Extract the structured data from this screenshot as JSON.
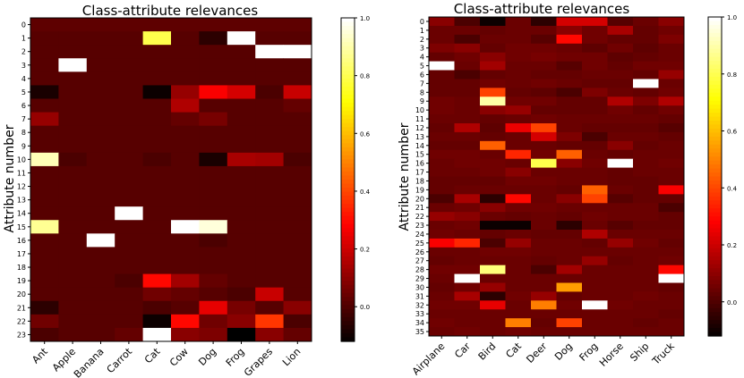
{
  "chart_data": [
    {
      "type": "heatmap",
      "title": "Class-attribute relevances",
      "xlabel": "",
      "ylabel": "Attribute number",
      "categories": [
        "Ant",
        "Apple",
        "Banana",
        "Carrot",
        "Cat",
        "Cow",
        "Dog",
        "Frog",
        "Grapes",
        "Lion"
      ],
      "rows": [
        "0",
        "1",
        "2",
        "3",
        "4",
        "5",
        "6",
        "7",
        "8",
        "9",
        "10",
        "11",
        "12",
        "13",
        "14",
        "15",
        "16",
        "17",
        "18",
        "19",
        "20",
        "21",
        "22",
        "23"
      ],
      "values": [
        [
          0.03,
          0.03,
          0.03,
          0.03,
          0.03,
          0.03,
          0.03,
          0.03,
          0.03,
          0.03
        ],
        [
          0.02,
          0.02,
          0.02,
          0.02,
          0.8,
          0.02,
          -0.05,
          1.0,
          0.02,
          0.02
        ],
        [
          0.02,
          0.02,
          0.02,
          0.02,
          0.02,
          0.02,
          0.02,
          0.02,
          1.0,
          1.0
        ],
        [
          0.02,
          1.0,
          0.02,
          0.02,
          0.02,
          0.02,
          0.02,
          0.02,
          0.02,
          0.02
        ],
        [
          0.02,
          0.02,
          0.02,
          0.02,
          0.02,
          0.02,
          0.02,
          0.02,
          0.02,
          0.02
        ],
        [
          -0.08,
          0.02,
          0.02,
          0.02,
          -0.1,
          0.12,
          0.28,
          0.22,
          0.0,
          0.2
        ],
        [
          0.02,
          0.02,
          0.02,
          0.02,
          0.02,
          0.16,
          0.02,
          0.02,
          0.02,
          0.04
        ],
        [
          0.12,
          0.02,
          0.02,
          0.02,
          0.02,
          0.04,
          0.07,
          0.02,
          0.02,
          0.02
        ],
        [
          0.02,
          0.02,
          0.02,
          0.02,
          0.02,
          0.02,
          0.02,
          0.02,
          0.02,
          0.02
        ],
        [
          0.02,
          0.02,
          0.02,
          0.02,
          0.02,
          0.02,
          0.02,
          0.02,
          0.02,
          0.02
        ],
        [
          0.92,
          0.0,
          0.02,
          0.02,
          0.0,
          0.02,
          -0.08,
          0.15,
          0.14,
          0.0
        ],
        [
          0.02,
          0.02,
          0.02,
          0.02,
          0.02,
          0.02,
          0.02,
          0.02,
          0.02,
          0.02
        ],
        [
          0.02,
          0.02,
          0.02,
          0.02,
          0.02,
          0.02,
          0.02,
          0.02,
          0.02,
          0.02
        ],
        [
          0.02,
          0.02,
          0.02,
          0.02,
          0.02,
          0.02,
          0.02,
          0.02,
          0.02,
          0.02
        ],
        [
          0.02,
          0.02,
          0.02,
          1.0,
          0.02,
          0.02,
          0.02,
          0.02,
          0.02,
          0.02
        ],
        [
          0.88,
          0.02,
          0.02,
          0.02,
          0.02,
          1.0,
          0.96,
          0.02,
          0.02,
          0.02
        ],
        [
          0.02,
          0.02,
          1.0,
          0.02,
          0.02,
          0.02,
          0.0,
          0.02,
          0.02,
          0.02
        ],
        [
          0.02,
          0.02,
          0.02,
          0.02,
          0.02,
          0.02,
          0.02,
          0.02,
          0.02,
          0.02
        ],
        [
          0.02,
          0.02,
          0.02,
          0.02,
          0.02,
          0.02,
          0.02,
          0.02,
          0.02,
          0.02
        ],
        [
          0.02,
          0.02,
          0.02,
          0.0,
          0.3,
          0.14,
          0.04,
          0.02,
          0.02,
          0.02
        ],
        [
          0.02,
          0.02,
          0.02,
          0.02,
          0.06,
          0.04,
          0.02,
          0.0,
          0.2,
          0.02
        ],
        [
          -0.05,
          0.02,
          0.02,
          0.02,
          0.0,
          0.02,
          0.25,
          0.07,
          0.02,
          0.1
        ],
        [
          0.06,
          0.02,
          0.02,
          0.02,
          -0.1,
          0.3,
          0.06,
          0.1,
          0.38,
          0.0
        ],
        [
          0.0,
          0.02,
          0.02,
          0.04,
          1.0,
          0.1,
          0.08,
          -0.15,
          0.1,
          0.04
        ]
      ],
      "colorbar": {
        "min": -0.12,
        "max": 1.0,
        "ticks": [
          "0.0",
          "0.2",
          "0.4",
          "0.6",
          "0.8",
          "1.0"
        ]
      },
      "colormap": "hot"
    },
    {
      "type": "heatmap",
      "title": "Class-attribute relevances",
      "xlabel": "",
      "ylabel": "Attribute number",
      "categories": [
        "Airplane",
        "Car",
        "Bird",
        "Cat",
        "Deer",
        "Dog",
        "Frog",
        "Horse",
        "Ship",
        "Truck"
      ],
      "rows": [
        "0",
        "1",
        "2",
        "3",
        "4",
        "5",
        "6",
        "7",
        "8",
        "9",
        "10",
        "11",
        "12",
        "13",
        "14",
        "15",
        "16",
        "17",
        "18",
        "19",
        "20",
        "21",
        "22",
        "23",
        "24",
        "25",
        "26",
        "27",
        "28",
        "29",
        "30",
        "31",
        "32",
        "33",
        "34",
        "35"
      ],
      "values": [
        [
          0.1,
          0.0,
          -0.1,
          0.05,
          -0.05,
          0.22,
          0.22,
          0.02,
          0.05,
          0.1
        ],
        [
          0.05,
          0.05,
          0.04,
          0.05,
          0.05,
          0.1,
          0.06,
          0.15,
          0.04,
          0.06
        ],
        [
          0.05,
          0.0,
          0.05,
          0.05,
          0.02,
          0.3,
          0.06,
          0.04,
          0.04,
          0.08
        ],
        [
          0.08,
          0.1,
          0.04,
          0.06,
          0.06,
          0.05,
          0.03,
          0.06,
          0.03,
          0.05
        ],
        [
          0.04,
          0.06,
          0.1,
          0.06,
          0.07,
          0.06,
          0.06,
          0.03,
          0.04,
          0.05
        ],
        [
          1.0,
          0.05,
          0.14,
          0.05,
          0.05,
          0.02,
          0.06,
          0.04,
          0.06,
          0.06
        ],
        [
          0.04,
          0.0,
          0.04,
          0.05,
          0.04,
          0.04,
          0.05,
          0.05,
          0.04,
          0.12
        ],
        [
          0.04,
          0.04,
          0.06,
          0.05,
          0.06,
          0.05,
          0.04,
          0.04,
          1.0,
          0.05
        ],
        [
          0.04,
          0.04,
          0.4,
          0.04,
          0.03,
          0.0,
          0.08,
          0.05,
          0.04,
          0.06
        ],
        [
          0.06,
          0.05,
          0.9,
          0.06,
          0.06,
          0.04,
          0.04,
          0.16,
          0.08,
          0.16
        ],
        [
          0.06,
          0.05,
          0.1,
          0.12,
          0.04,
          0.04,
          0.04,
          0.06,
          0.04,
          0.06
        ],
        [
          0.05,
          0.05,
          0.04,
          0.05,
          0.06,
          0.05,
          0.05,
          0.05,
          0.05,
          0.04
        ],
        [
          0.04,
          0.16,
          0.03,
          0.26,
          0.4,
          0.05,
          0.04,
          0.04,
          0.04,
          0.02
        ],
        [
          0.05,
          0.05,
          0.04,
          0.05,
          0.22,
          0.08,
          0.0,
          0.05,
          0.05,
          0.04
        ],
        [
          0.04,
          0.04,
          0.45,
          0.05,
          0.05,
          0.04,
          0.04,
          0.1,
          0.04,
          0.05
        ],
        [
          0.06,
          0.06,
          0.05,
          0.35,
          0.06,
          0.45,
          0.05,
          0.04,
          0.05,
          0.05
        ],
        [
          0.05,
          0.06,
          0.06,
          0.05,
          0.8,
          0.1,
          0.06,
          1.0,
          0.05,
          0.06
        ],
        [
          0.05,
          0.05,
          0.06,
          0.1,
          0.05,
          0.05,
          0.05,
          0.04,
          0.05,
          0.05
        ],
        [
          0.04,
          0.04,
          0.04,
          0.06,
          0.06,
          0.05,
          0.05,
          0.04,
          0.04,
          0.05
        ],
        [
          0.04,
          0.05,
          0.05,
          0.05,
          0.05,
          0.04,
          0.45,
          0.05,
          0.04,
          0.28
        ],
        [
          0.0,
          0.15,
          -0.05,
          0.3,
          0.05,
          0.1,
          0.4,
          0.02,
          0.04,
          0.04
        ],
        [
          0.05,
          0.06,
          0.1,
          0.06,
          0.06,
          0.05,
          0.05,
          0.05,
          0.05,
          0.0
        ],
        [
          0.12,
          0.1,
          0.05,
          0.04,
          0.05,
          0.04,
          0.06,
          0.05,
          0.05,
          0.04
        ],
        [
          0.05,
          0.06,
          -0.1,
          -0.1,
          0.05,
          -0.05,
          0.05,
          0.02,
          0.04,
          0.04
        ],
        [
          0.06,
          0.05,
          0.04,
          0.05,
          0.04,
          0.04,
          0.16,
          0.05,
          0.05,
          0.05
        ],
        [
          0.28,
          0.35,
          0.0,
          0.12,
          0.05,
          0.05,
          0.04,
          0.12,
          0.06,
          0.04
        ],
        [
          0.05,
          0.05,
          0.06,
          0.06,
          0.05,
          0.05,
          0.05,
          0.05,
          0.05,
          0.05
        ],
        [
          0.04,
          0.05,
          0.05,
          0.05,
          0.04,
          0.05,
          0.12,
          0.04,
          0.05,
          0.06
        ],
        [
          0.06,
          0.06,
          0.85,
          0.05,
          0.0,
          0.14,
          0.05,
          0.05,
          0.05,
          0.3
        ],
        [
          0.05,
          1.0,
          0.05,
          0.05,
          0.05,
          0.05,
          0.05,
          0.05,
          0.05,
          1.0
        ],
        [
          0.04,
          0.06,
          0.12,
          0.05,
          0.05,
          0.55,
          0.05,
          0.05,
          0.05,
          0.04
        ],
        [
          0.05,
          0.15,
          -0.05,
          0.06,
          0.12,
          0.04,
          0.05,
          0.05,
          0.06,
          0.05
        ],
        [
          0.06,
          0.06,
          0.25,
          0.05,
          0.5,
          0.06,
          1.0,
          0.06,
          0.05,
          0.05
        ],
        [
          0.05,
          0.05,
          0.05,
          0.05,
          0.05,
          0.05,
          0.05,
          0.05,
          0.05,
          0.04
        ],
        [
          0.06,
          0.05,
          0.05,
          0.5,
          0.04,
          0.4,
          0.05,
          0.05,
          0.04,
          0.05
        ],
        [
          0.05,
          0.06,
          0.05,
          0.06,
          0.05,
          0.05,
          0.05,
          0.05,
          0.05,
          0.05
        ]
      ],
      "colorbar": {
        "min": -0.12,
        "max": 1.0,
        "ticks": [
          "0.0",
          "0.2",
          "0.4",
          "0.6",
          "0.8",
          "1.0"
        ]
      },
      "colormap": "hot"
    }
  ]
}
